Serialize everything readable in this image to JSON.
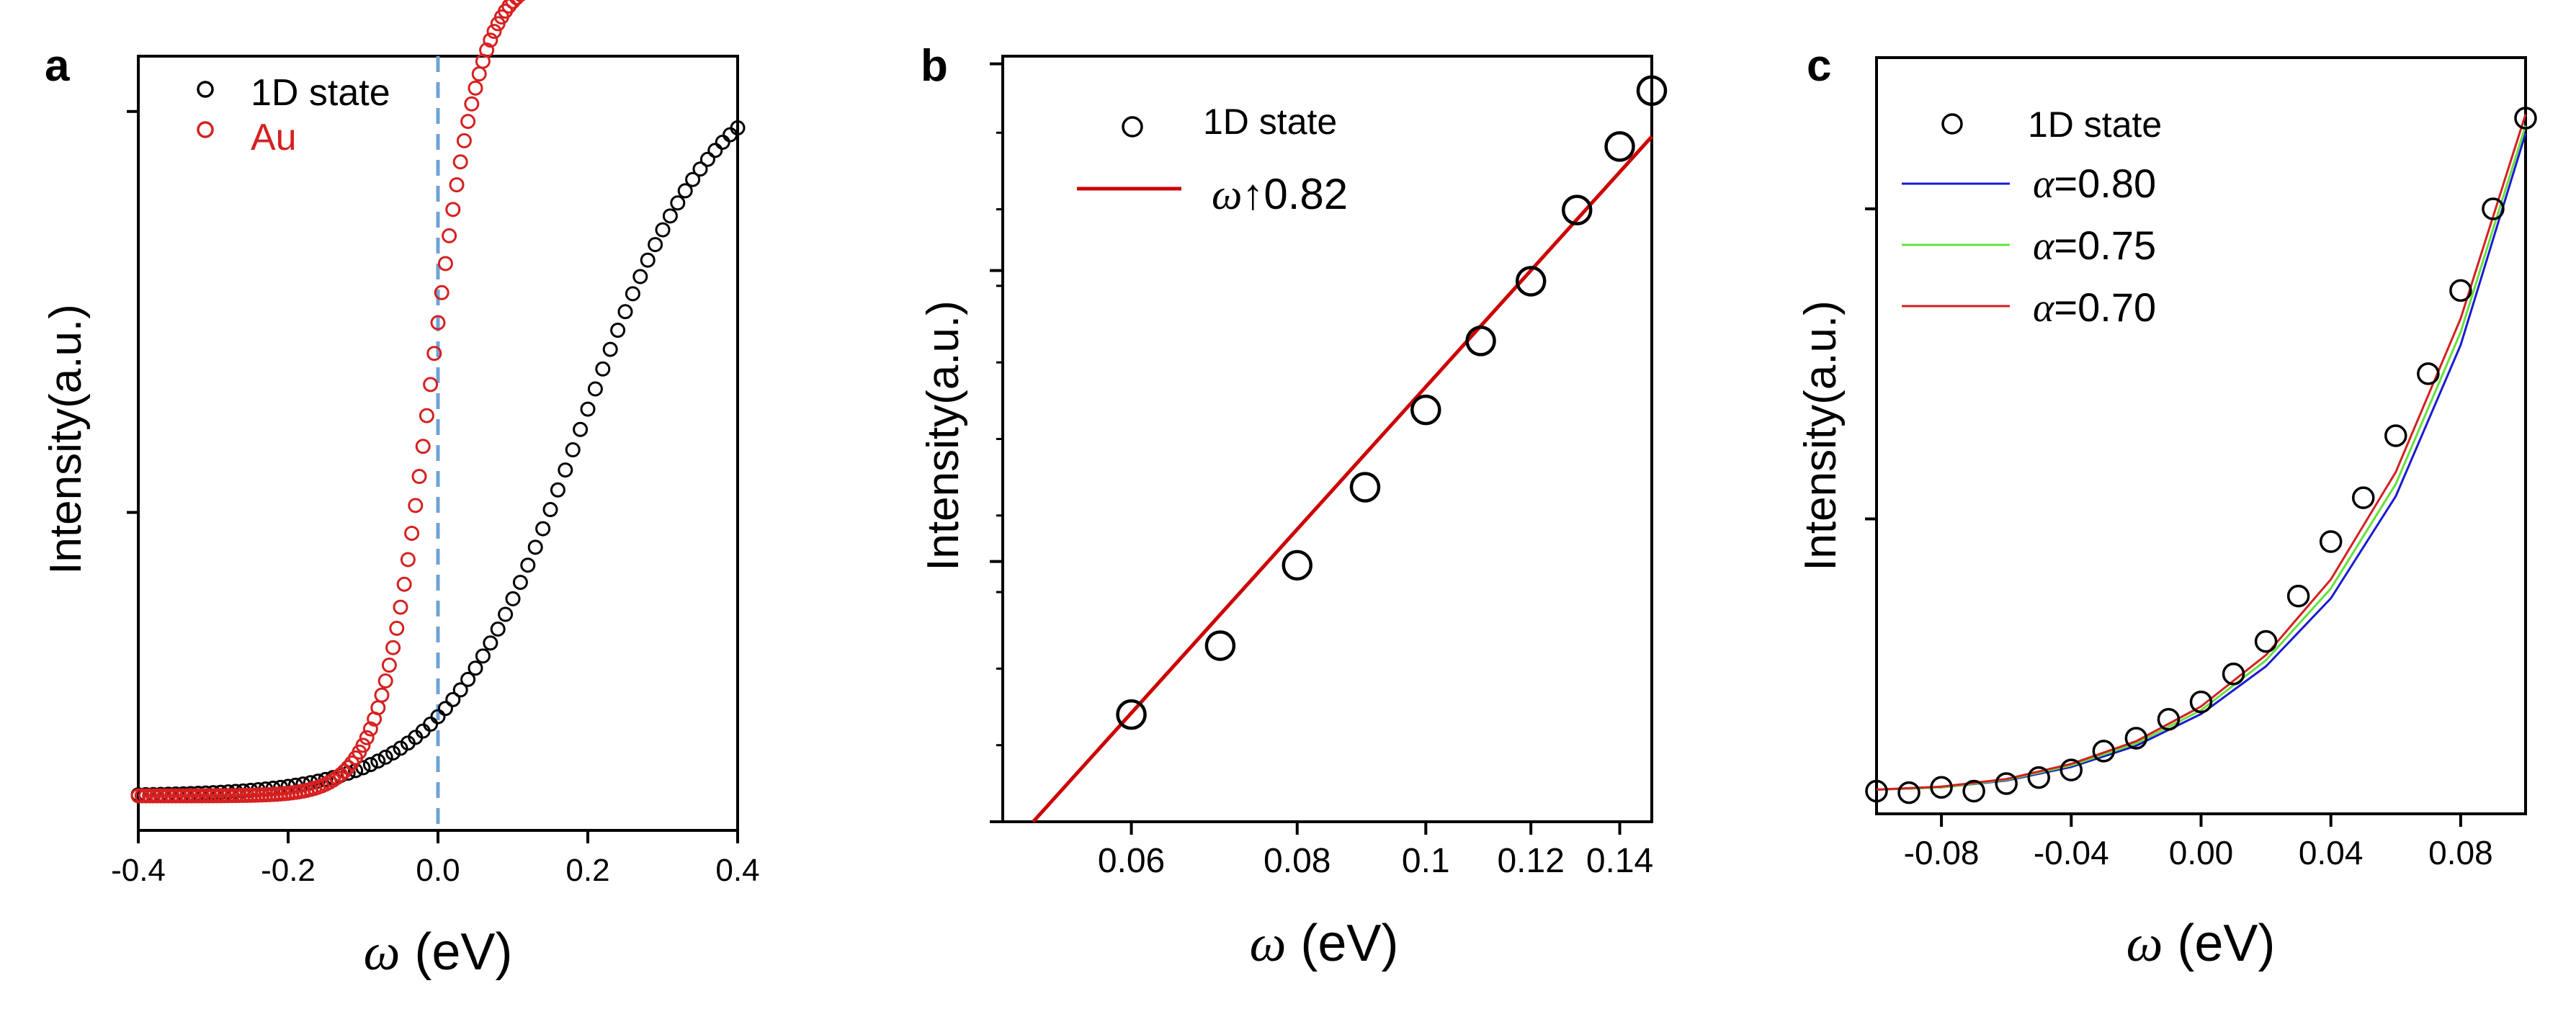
{
  "chart_data": [
    {
      "type": "scatter",
      "panel": "a",
      "xlabel": "ω (eV)",
      "ylabel": "Intensity(a.u.)",
      "xlim": [
        -0.4,
        0.4
      ],
      "ylim": [
        0,
        1.12
      ],
      "xticks": [
        -0.4,
        -0.2,
        0.0,
        0.2,
        0.4
      ],
      "xtick_labels": [
        "-0.4",
        "-0.2",
        "0.0",
        "0.2",
        "0.4"
      ],
      "yticks": [
        0.46,
        1.04
      ],
      "fermi_level_line": 0.0,
      "legend": [
        "1D state",
        "Au"
      ],
      "series": [
        {
          "name": "1D state",
          "color": "#000000",
          "marker": "open-circle",
          "model": {
            "form": "sigmoid",
            "base": 0.05,
            "amplitude": 1.06,
            "center": 0.19,
            "width": 0.09,
            "x_range": [
              -0.4,
              0.4
            ],
            "step": 0.01
          }
        },
        {
          "name": "Au",
          "color": "#d62020",
          "marker": "open-circle",
          "model": {
            "form": "sigmoid",
            "base": 0.05,
            "amplitude": 1.19,
            "center": -0.01,
            "width": 0.033,
            "x_range": [
              -0.4,
              0.4
            ],
            "step": 0.005
          }
        }
      ]
    },
    {
      "type": "scatter",
      "panel": "b",
      "xlabel": "ω (eV)",
      "ylabel": "Intensity(a.u.)",
      "xlim": [
        0.048,
        0.148
      ],
      "xscale": "log",
      "ylim": [
        0,
        1
      ],
      "xticks": [
        0.06,
        0.08,
        0.1,
        0.12,
        0.14
      ],
      "xtick_labels": [
        "0.06",
        "0.08",
        "0.1",
        "0.12",
        "0.14"
      ],
      "yticks_major": [
        0,
        0.34,
        0.72,
        0.99
      ],
      "yticks_minor_count": 9,
      "legend": [
        "1D state",
        "ω↑0.82"
      ],
      "series": [
        {
          "name": "1D state",
          "color": "#000000",
          "marker": "open-circle",
          "x": [
            0.06,
            0.07,
            0.08,
            0.09,
            0.1,
            0.11,
            0.12,
            0.13,
            0.14,
            0.148
          ],
          "y": [
            0.14,
            0.23,
            0.335,
            0.437,
            0.538,
            0.628,
            0.706,
            0.799,
            0.882,
            0.955
          ]
        },
        {
          "name": "ω↑0.82",
          "color": "#cc0000",
          "type": "line",
          "x": [
            0.0506,
            0.148
          ],
          "y": [
            0.0,
            0.895
          ]
        }
      ]
    },
    {
      "type": "scatter",
      "panel": "c",
      "xlabel": "ω (eV)",
      "ylabel": "Intensity(a.u.)",
      "xlim": [
        -0.1,
        0.1
      ],
      "ylim": [
        0,
        1
      ],
      "xticks": [
        -0.08,
        -0.04,
        0.0,
        0.04,
        0.08
      ],
      "xtick_labels": [
        "-0.08",
        "-0.04",
        "0.00",
        "0.04",
        "0.08"
      ],
      "yticks": [
        0.39,
        0.8
      ],
      "legend": [
        "1D state",
        "α=0.80",
        "α=0.75",
        "α=0.70"
      ],
      "series": [
        {
          "name": "1D state",
          "color": "#000000",
          "marker": "open-circle",
          "x": [
            -0.1,
            -0.09,
            -0.08,
            -0.07,
            -0.06,
            -0.05,
            -0.04,
            -0.03,
            -0.02,
            -0.01,
            0.0,
            0.01,
            0.02,
            0.03,
            0.04,
            0.05,
            0.06,
            0.07,
            0.08,
            0.09,
            0.1
          ],
          "y": [
            0.03,
            0.028,
            0.035,
            0.03,
            0.04,
            0.048,
            0.058,
            0.083,
            0.1,
            0.125,
            0.148,
            0.185,
            0.228,
            0.288,
            0.36,
            0.418,
            0.5,
            0.582,
            0.692,
            0.8,
            0.92
          ]
        },
        {
          "name": "α=0.80",
          "color": "#1a1ad0",
          "type": "line",
          "x": [
            -0.1,
            -0.08,
            -0.06,
            -0.04,
            -0.02,
            0.0,
            0.02,
            0.04,
            0.06,
            0.08,
            0.1
          ],
          "y": [
            0.032,
            0.035,
            0.044,
            0.062,
            0.09,
            0.132,
            0.195,
            0.285,
            0.42,
            0.62,
            0.9
          ]
        },
        {
          "name": "α=0.75",
          "color": "#66e03a",
          "type": "line",
          "x": [
            -0.1,
            -0.08,
            -0.06,
            -0.04,
            -0.02,
            0.0,
            0.02,
            0.04,
            0.06,
            0.08,
            0.1
          ],
          "y": [
            0.032,
            0.035,
            0.045,
            0.064,
            0.093,
            0.137,
            0.203,
            0.298,
            0.436,
            0.637,
            0.91
          ]
        },
        {
          "name": "α=0.70",
          "color": "#d42020",
          "type": "line",
          "x": [
            -0.1,
            -0.08,
            -0.06,
            -0.04,
            -0.02,
            0.0,
            0.02,
            0.04,
            0.06,
            0.08,
            0.1
          ],
          "y": [
            0.032,
            0.036,
            0.046,
            0.066,
            0.096,
            0.142,
            0.21,
            0.31,
            0.452,
            0.655,
            0.925
          ]
        }
      ]
    }
  ],
  "panels": {
    "a": "a",
    "b": "b",
    "c": "c"
  },
  "legends": {
    "a": [
      "1D state",
      "Au"
    ],
    "b": {
      "state": "1D state",
      "fit_symbol": "ω",
      "fit_arrow": "↑",
      "fit_value": "0.82"
    },
    "c": {
      "state": "1D state",
      "fits": [
        {
          "symbol": "α",
          "value": "=0.80"
        },
        {
          "symbol": "α",
          "value": "=0.75"
        },
        {
          "symbol": "α",
          "value": "=0.70"
        }
      ]
    }
  },
  "axis_labels": {
    "x_symbol": "ω",
    "x_unit": " (eV)",
    "y": "Intensity(a.u.)"
  },
  "colors": {
    "state": "#000000",
    "au": "#d62020",
    "fermi_line": "#6fa3d6",
    "fit_b": "#cc0000",
    "alpha_080": "#1a1ad0",
    "alpha_075": "#66e03a",
    "alpha_070": "#d42020"
  }
}
